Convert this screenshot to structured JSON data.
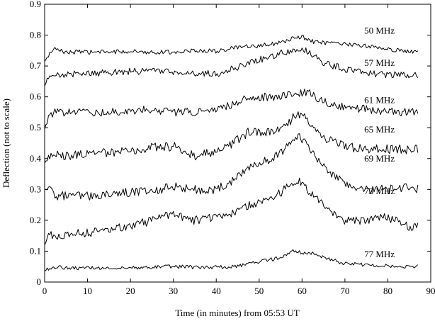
{
  "chart_data": {
    "type": "line",
    "xlabel": "Time (in minutes) from 05:53 UT",
    "ylabel": "Deflection (not to scale)",
    "xlim": [
      0,
      90
    ],
    "ylim": [
      0,
      0.9
    ],
    "xticks": [
      "0",
      "10",
      "20",
      "30",
      "40",
      "50",
      "60",
      "70",
      "80",
      "90"
    ],
    "yticks": [
      "0",
      "0.1",
      "0.2",
      "0.3",
      "0.4",
      "0.5",
      "0.6",
      "0.7",
      "0.8",
      "0.9"
    ],
    "grid": false,
    "line_color": "#000000",
    "series": [
      {
        "name": "50 MHz",
        "label_x": 74.5,
        "label_y": 0.805,
        "x": [
          0,
          2,
          5,
          10,
          15,
          20,
          25,
          30,
          35,
          40,
          45,
          50,
          55,
          58,
          60,
          62,
          65,
          70,
          75,
          80,
          85,
          87
        ],
        "y": [
          0.715,
          0.755,
          0.745,
          0.745,
          0.745,
          0.748,
          0.745,
          0.745,
          0.75,
          0.748,
          0.76,
          0.765,
          0.775,
          0.79,
          0.795,
          0.78,
          0.775,
          0.77,
          0.765,
          0.755,
          0.745,
          0.752
        ],
        "noise": 0.007
      },
      {
        "name": "57 MHz",
        "label_x": 74.5,
        "label_y": 0.7,
        "x": [
          0,
          1,
          3,
          5,
          10,
          15,
          20,
          25,
          30,
          35,
          40,
          45,
          50,
          55,
          58,
          60,
          62,
          65,
          70,
          75,
          80,
          85,
          87
        ],
        "y": [
          0.635,
          0.665,
          0.67,
          0.675,
          0.675,
          0.68,
          0.682,
          0.685,
          0.68,
          0.675,
          0.675,
          0.695,
          0.72,
          0.74,
          0.755,
          0.76,
          0.74,
          0.71,
          0.69,
          0.678,
          0.672,
          0.67,
          0.668
        ],
        "noise": 0.011
      },
      {
        "name": "61 MHz",
        "label_x": 74.5,
        "label_y": 0.58,
        "x": [
          0,
          1,
          3,
          5,
          10,
          15,
          20,
          25,
          30,
          35,
          40,
          45,
          48,
          50,
          55,
          58,
          60,
          62,
          65,
          70,
          75,
          80,
          85,
          87
        ],
        "y": [
          0.495,
          0.545,
          0.55,
          0.55,
          0.55,
          0.55,
          0.555,
          0.56,
          0.55,
          0.55,
          0.555,
          0.585,
          0.6,
          0.6,
          0.6,
          0.61,
          0.615,
          0.61,
          0.585,
          0.565,
          0.56,
          0.55,
          0.552,
          0.555
        ],
        "noise": 0.013
      },
      {
        "name": "65 MHz",
        "label_x": 74.5,
        "label_y": 0.485,
        "x": [
          0,
          1,
          3,
          5,
          10,
          15,
          20,
          25,
          30,
          35,
          40,
          45,
          48,
          50,
          55,
          57,
          59,
          61,
          63,
          65,
          70,
          75,
          80,
          85,
          87
        ],
        "y": [
          0.385,
          0.41,
          0.41,
          0.41,
          0.415,
          0.42,
          0.425,
          0.435,
          0.44,
          0.41,
          0.42,
          0.46,
          0.49,
          0.48,
          0.5,
          0.52,
          0.55,
          0.53,
          0.5,
          0.47,
          0.44,
          0.43,
          0.43,
          0.43,
          0.432
        ],
        "noise": 0.015
      },
      {
        "name": "69 MHz",
        "label_x": 74.5,
        "label_y": 0.39,
        "x": [
          0,
          1,
          3,
          5,
          10,
          15,
          20,
          25,
          30,
          35,
          40,
          45,
          48,
          50,
          55,
          57,
          59,
          61,
          63,
          65,
          70,
          75,
          80,
          85,
          87
        ],
        "y": [
          0.3,
          0.3,
          0.28,
          0.28,
          0.28,
          0.285,
          0.29,
          0.295,
          0.31,
          0.3,
          0.3,
          0.34,
          0.38,
          0.38,
          0.42,
          0.45,
          0.47,
          0.45,
          0.41,
          0.37,
          0.32,
          0.3,
          0.3,
          0.305,
          0.3
        ],
        "noise": 0.015
      },
      {
        "name": "73 MHz",
        "label_x": 74.5,
        "label_y": 0.285,
        "x": [
          0,
          1,
          3,
          5,
          10,
          15,
          20,
          25,
          30,
          35,
          40,
          45,
          48,
          50,
          55,
          57,
          59,
          61,
          63,
          65,
          70,
          75,
          80,
          85,
          87
        ],
        "y": [
          0.12,
          0.15,
          0.15,
          0.155,
          0.16,
          0.17,
          0.18,
          0.2,
          0.22,
          0.2,
          0.21,
          0.23,
          0.25,
          0.26,
          0.29,
          0.31,
          0.33,
          0.3,
          0.28,
          0.25,
          0.2,
          0.2,
          0.21,
          0.18,
          0.18
        ],
        "noise": 0.014
      },
      {
        "name": "77 MHz",
        "label_x": 74.5,
        "label_y": 0.08,
        "x": [
          0,
          1,
          3,
          5,
          10,
          15,
          20,
          25,
          30,
          35,
          40,
          45,
          50,
          55,
          58,
          60,
          62,
          65,
          70,
          75,
          80,
          85,
          87
        ],
        "y": [
          0.035,
          0.045,
          0.05,
          0.045,
          0.045,
          0.047,
          0.047,
          0.048,
          0.05,
          0.048,
          0.048,
          0.052,
          0.065,
          0.08,
          0.1,
          0.095,
          0.095,
          0.08,
          0.06,
          0.055,
          0.052,
          0.05,
          0.052
        ],
        "noise": 0.006
      }
    ]
  }
}
